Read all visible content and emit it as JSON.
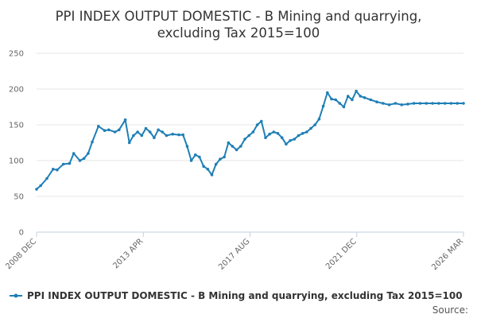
{
  "chart_data": {
    "type": "line",
    "title_lines": [
      "PPI INDEX OUTPUT DOMESTIC - B Mining and quarrying,",
      "excluding Tax 2015=100"
    ],
    "xlabel": "",
    "ylabel": "",
    "x_tick_labels": [
      "2008 DEC",
      "2013 APR",
      "2017 AUG",
      "2021 DEC",
      "2026 MAR"
    ],
    "y_ticks": [
      0,
      50,
      100,
      150,
      200,
      250
    ],
    "ylim": [
      0,
      250
    ],
    "grid": true,
    "legend_position": "bottom",
    "source_label": "Source:",
    "x_start": "2008-12",
    "x_end": "2026-03",
    "series": [
      {
        "name": "PPI INDEX OUTPUT DOMESTIC - B Mining and quarrying, excluding Tax 2015=100",
        "color": "#1f7fb6",
        "x": [
          "2008-12",
          "2009-02",
          "2009-05",
          "2009-08",
          "2009-10",
          "2010-01",
          "2010-04",
          "2010-06",
          "2010-09",
          "2010-11",
          "2011-01",
          "2011-03",
          "2011-06",
          "2011-09",
          "2011-11",
          "2012-02",
          "2012-04",
          "2012-07",
          "2012-09",
          "2012-11",
          "2013-01",
          "2013-03",
          "2013-05",
          "2013-07",
          "2013-09",
          "2013-11",
          "2014-01",
          "2014-03",
          "2014-06",
          "2014-09",
          "2014-11",
          "2015-01",
          "2015-03",
          "2015-05",
          "2015-07",
          "2015-09",
          "2015-11",
          "2016-01",
          "2016-03",
          "2016-05",
          "2016-07",
          "2016-09",
          "2016-11",
          "2017-01",
          "2017-03",
          "2017-05",
          "2017-07",
          "2017-09",
          "2017-11",
          "2018-01",
          "2018-03",
          "2018-05",
          "2018-07",
          "2018-09",
          "2018-11",
          "2019-01",
          "2019-03",
          "2019-05",
          "2019-07",
          "2019-09",
          "2019-11",
          "2020-01",
          "2020-03",
          "2020-05",
          "2020-07",
          "2020-09",
          "2020-11",
          "2021-01",
          "2021-03",
          "2021-05",
          "2021-07",
          "2021-09",
          "2021-11",
          "2022-01",
          "2022-03",
          "2022-06",
          "2022-09",
          "2022-12",
          "2023-03",
          "2023-06",
          "2023-09",
          "2023-12",
          "2024-03",
          "2024-06",
          "2024-09",
          "2024-12",
          "2025-03",
          "2025-06",
          "2025-09",
          "2025-12",
          "2026-03"
        ],
        "values": [
          60,
          65,
          75,
          88,
          87,
          95,
          96,
          110,
          100,
          103,
          110,
          126,
          148,
          142,
          143,
          140,
          143,
          157,
          125,
          135,
          140,
          135,
          145,
          140,
          132,
          143,
          140,
          135,
          137,
          136,
          136,
          120,
          100,
          108,
          105,
          92,
          88,
          80,
          95,
          102,
          105,
          125,
          120,
          115,
          120,
          130,
          135,
          140,
          150,
          155,
          132,
          137,
          140,
          138,
          132,
          123,
          128,
          130,
          135,
          138,
          140,
          145,
          150,
          158,
          176,
          195,
          186,
          185,
          180,
          175,
          190,
          185,
          197,
          190,
          188,
          185,
          182,
          180,
          178,
          180,
          178,
          179,
          180,
          180,
          180,
          180,
          180,
          180,
          180,
          180,
          180
        ]
      }
    ]
  }
}
